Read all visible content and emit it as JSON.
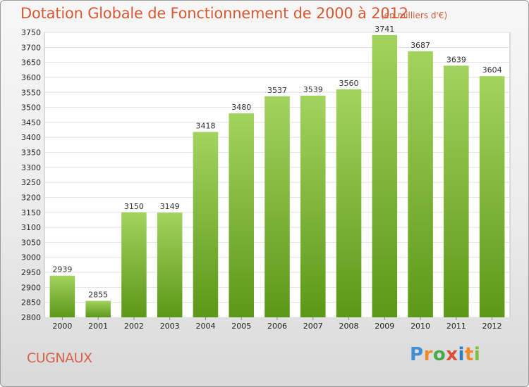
{
  "header": {
    "title": "Dotation Globale de Fonctionnement de 2000 à 2012",
    "unit": "(en milliers d'€)"
  },
  "footer": {
    "city": "CUGNAUX",
    "brand": "Proxiti"
  },
  "colors": {
    "title": "#d85a35",
    "bar_top": "#9fd159",
    "bar_bottom": "#5f9a1a"
  },
  "chart_data": {
    "type": "bar",
    "title": "Dotation Globale de Fonctionnement de 2000 à 2012",
    "subtitle": "(en milliers d'€)",
    "xlabel": "",
    "ylabel": "",
    "categories": [
      "2000",
      "2001",
      "2002",
      "2003",
      "2004",
      "2005",
      "2006",
      "2007",
      "2008",
      "2009",
      "2010",
      "2011",
      "2012"
    ],
    "values": [
      2939,
      2855,
      3150,
      3149,
      3418,
      3480,
      3537,
      3539,
      3560,
      3741,
      3687,
      3639,
      3604
    ],
    "ylim": [
      2800,
      3750
    ],
    "yticks": [
      2800,
      2850,
      2900,
      2950,
      3000,
      3050,
      3100,
      3150,
      3200,
      3250,
      3300,
      3350,
      3400,
      3450,
      3500,
      3550,
      3600,
      3650,
      3700,
      3750
    ],
    "grid": true,
    "legend": "none"
  }
}
